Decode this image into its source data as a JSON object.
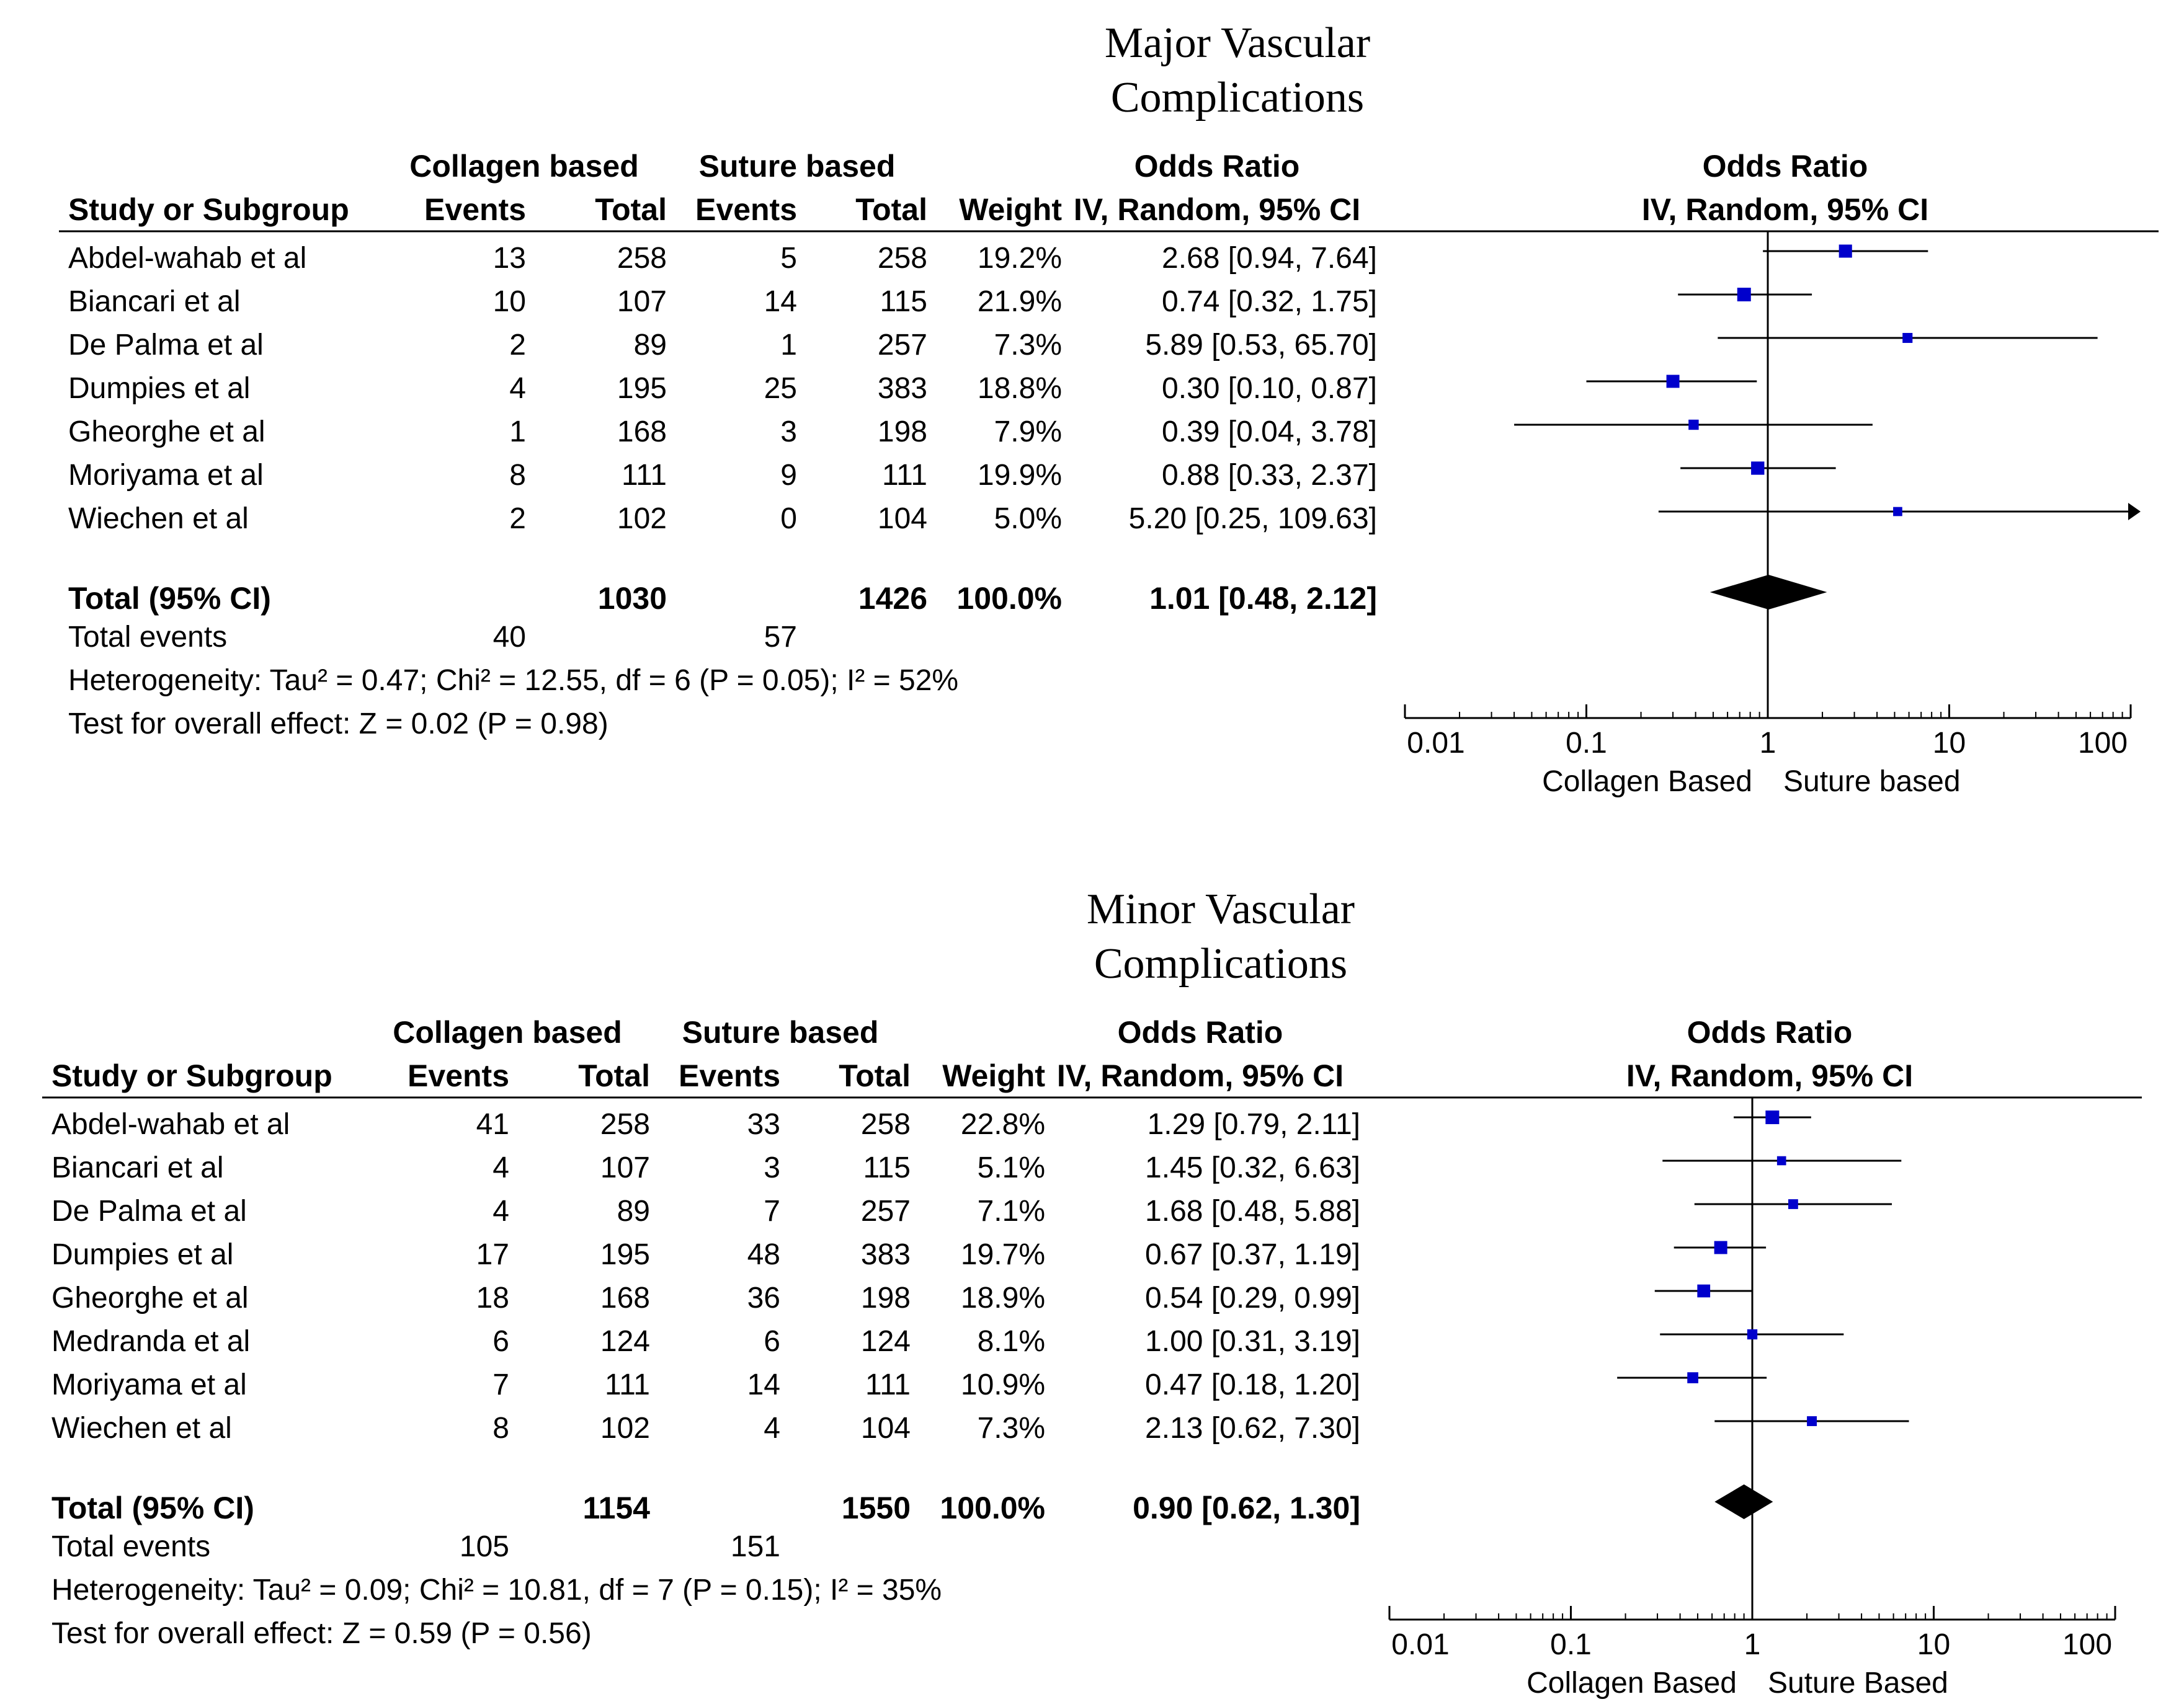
{
  "chart_data": [
    {
      "type": "forest",
      "title": "Major Vascular Complications",
      "title_lines": [
        "Major Vascular",
        "Complications"
      ],
      "headers": {
        "study": "Study or Subgroup",
        "group1": "Collagen based",
        "group2": "Suture based",
        "events": "Events",
        "total": "Total",
        "weight": "Weight",
        "or_title": "Odds Ratio",
        "or_method": "IV, Random, 95% CI",
        "plot_title": "Odds Ratio",
        "plot_method": "IV, Random, 95% CI"
      },
      "studies": [
        {
          "name": "Abdel-wahab et al",
          "e1": "13",
          "t1": "258",
          "e2": "5",
          "t2": "258",
          "weight": "19.2%",
          "ci_text": "2.68 [0.94, 7.64]",
          "or": 2.68,
          "lo": 0.94,
          "hi": 7.64,
          "w": 19.2
        },
        {
          "name": "Biancari et al",
          "e1": "10",
          "t1": "107",
          "e2": "14",
          "t2": "115",
          "weight": "21.9%",
          "ci_text": "0.74 [0.32, 1.75]",
          "or": 0.74,
          "lo": 0.32,
          "hi": 1.75,
          "w": 21.9
        },
        {
          "name": "De Palma et al",
          "e1": "2",
          "t1": "89",
          "e2": "1",
          "t2": "257",
          "weight": "7.3%",
          "ci_text": "5.89 [0.53, 65.70]",
          "or": 5.89,
          "lo": 0.53,
          "hi": 65.7,
          "w": 7.3
        },
        {
          "name": "Dumpies et al",
          "e1": "4",
          "t1": "195",
          "e2": "25",
          "t2": "383",
          "weight": "18.8%",
          "ci_text": "0.30 [0.10, 0.87]",
          "or": 0.3,
          "lo": 0.1,
          "hi": 0.87,
          "w": 18.8
        },
        {
          "name": "Gheorghe et al",
          "e1": "1",
          "t1": "168",
          "e2": "3",
          "t2": "198",
          "weight": "7.9%",
          "ci_text": "0.39 [0.04, 3.78]",
          "or": 0.39,
          "lo": 0.04,
          "hi": 3.78,
          "w": 7.9
        },
        {
          "name": "Moriyama et al",
          "e1": "8",
          "t1": "111",
          "e2": "9",
          "t2": "111",
          "weight": "19.9%",
          "ci_text": "0.88 [0.33, 2.37]",
          "or": 0.88,
          "lo": 0.33,
          "hi": 2.37,
          "w": 19.9
        },
        {
          "name": "Wiechen et al",
          "e1": "2",
          "t1": "102",
          "e2": "0",
          "t2": "104",
          "weight": "5.0%",
          "ci_text": "5.20 [0.25, 109.63]",
          "or": 5.2,
          "lo": 0.25,
          "hi": 109.63,
          "w": 5.0
        }
      ],
      "total": {
        "label": "Total (95% CI)",
        "t1": "1030",
        "t2": "1426",
        "weight": "100.0%",
        "ci_text": "1.01 [0.48, 2.12]",
        "or": 1.01,
        "lo": 0.48,
        "hi": 2.12
      },
      "total_events": {
        "label": "Total events",
        "e1": "40",
        "e2": "57"
      },
      "heterogeneity": "Heterogeneity: Tau² = 0.47; Chi² = 12.55, df = 6 (P = 0.05); I² = 52%",
      "overall_effect": "Test for overall effect: Z = 0.02 (P = 0.98)",
      "x_scale": "log",
      "xlim": [
        0.01,
        100
      ],
      "ticks": [
        0.01,
        0.1,
        1,
        10,
        100
      ],
      "tick_labels": [
        "0.01",
        "0.1",
        "1",
        "10",
        "100"
      ],
      "favours_left": "Collagen Based",
      "favours_right": "Suture based",
      "marker_color": "#0000cc"
    },
    {
      "type": "forest",
      "title": "Minor Vascular Complications",
      "title_lines": [
        "Minor Vascular",
        "Complications"
      ],
      "headers": {
        "study": "Study or Subgroup",
        "group1": "Collagen based",
        "group2": "Suture based",
        "events": "Events",
        "total": "Total",
        "weight": "Weight",
        "or_title": "Odds Ratio",
        "or_method": "IV, Random, 95% CI",
        "plot_title": "Odds Ratio",
        "plot_method": "IV, Random, 95% CI"
      },
      "studies": [
        {
          "name": "Abdel-wahab et al",
          "e1": "41",
          "t1": "258",
          "e2": "33",
          "t2": "258",
          "weight": "22.8%",
          "ci_text": "1.29 [0.79, 2.11]",
          "or": 1.29,
          "lo": 0.79,
          "hi": 2.11,
          "w": 22.8
        },
        {
          "name": "Biancari et al",
          "e1": "4",
          "t1": "107",
          "e2": "3",
          "t2": "115",
          "weight": "5.1%",
          "ci_text": "1.45 [0.32, 6.63]",
          "or": 1.45,
          "lo": 0.32,
          "hi": 6.63,
          "w": 5.1
        },
        {
          "name": "De Palma et al",
          "e1": "4",
          "t1": "89",
          "e2": "7",
          "t2": "257",
          "weight": "7.1%",
          "ci_text": "1.68 [0.48, 5.88]",
          "or": 1.68,
          "lo": 0.48,
          "hi": 5.88,
          "w": 7.1
        },
        {
          "name": "Dumpies et al",
          "e1": "17",
          "t1": "195",
          "e2": "48",
          "t2": "383",
          "weight": "19.7%",
          "ci_text": "0.67 [0.37, 1.19]",
          "or": 0.67,
          "lo": 0.37,
          "hi": 1.19,
          "w": 19.7
        },
        {
          "name": "Gheorghe et al",
          "e1": "18",
          "t1": "168",
          "e2": "36",
          "t2": "198",
          "weight": "18.9%",
          "ci_text": "0.54 [0.29, 0.99]",
          "or": 0.54,
          "lo": 0.29,
          "hi": 0.99,
          "w": 18.9
        },
        {
          "name": "Medranda et al",
          "e1": "6",
          "t1": "124",
          "e2": "6",
          "t2": "124",
          "weight": "8.1%",
          "ci_text": "1.00 [0.31, 3.19]",
          "or": 1.0,
          "lo": 0.31,
          "hi": 3.19,
          "w": 8.1
        },
        {
          "name": "Moriyama et al",
          "e1": "7",
          "t1": "111",
          "e2": "14",
          "t2": "111",
          "weight": "10.9%",
          "ci_text": "0.47 [0.18, 1.20]",
          "or": 0.47,
          "lo": 0.18,
          "hi": 1.2,
          "w": 10.9
        },
        {
          "name": "Wiechen et al",
          "e1": "8",
          "t1": "102",
          "e2": "4",
          "t2": "104",
          "weight": "7.3%",
          "ci_text": "2.13 [0.62, 7.30]",
          "or": 2.13,
          "lo": 0.62,
          "hi": 7.3,
          "w": 7.3
        }
      ],
      "total": {
        "label": "Total (95% CI)",
        "t1": "1154",
        "t2": "1550",
        "weight": "100.0%",
        "ci_text": "0.90 [0.62, 1.30]",
        "or": 0.9,
        "lo": 0.62,
        "hi": 1.3
      },
      "total_events": {
        "label": "Total events",
        "e1": "105",
        "e2": "151"
      },
      "heterogeneity": "Heterogeneity: Tau² = 0.09; Chi² = 10.81, df = 7 (P = 0.15); I² = 35%",
      "overall_effect": "Test for overall effect: Z = 0.59 (P = 0.56)",
      "x_scale": "log",
      "xlim": [
        0.01,
        100
      ],
      "ticks": [
        0.01,
        0.1,
        1,
        10,
        100
      ],
      "tick_labels": [
        "0.01",
        "0.1",
        "1",
        "10",
        "100"
      ],
      "favours_left": "Collagen Based",
      "favours_right": "Suture Based",
      "marker_color": "#0000cc"
    }
  ]
}
